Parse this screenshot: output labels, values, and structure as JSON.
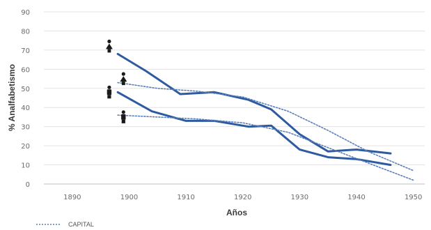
{
  "chart_data": {
    "type": "line",
    "xlabel": "Años",
    "ylabel": "% Analfabetismo",
    "xlim": [
      1885,
      1952
    ],
    "ylim": [
      0,
      90
    ],
    "x_ticks": [
      1890,
      1900,
      1910,
      1920,
      1930,
      1940,
      1950
    ],
    "y_ticks": [
      0,
      10,
      20,
      30,
      40,
      50,
      60,
      70,
      80,
      90
    ],
    "grid": "horizontal",
    "legend_position": "bottom-left",
    "legend": [
      {
        "label": "CAPITAL",
        "style": "dotted"
      }
    ],
    "series": [
      {
        "color": "#2e5aa0",
        "style": "solid",
        "x": [
          1898,
          1903,
          1909,
          1915,
          1921,
          1925,
          1930,
          1935,
          1940,
          1946
        ],
        "y": [
          68,
          59,
          47,
          48,
          44,
          39,
          26,
          17,
          18,
          16
        ]
      },
      {
        "color": "#2e5aa0",
        "style": "solid",
        "x": [
          1898,
          1904,
          1910,
          1915,
          1921,
          1925,
          1930,
          1935,
          1940,
          1946
        ],
        "y": [
          48,
          38,
          33,
          33,
          30,
          30.5,
          18,
          14,
          13,
          10
        ]
      },
      {
        "name": "CAPITAL",
        "color": "#5b7fb8",
        "style": "dotted",
        "x": [
          1898,
          1905,
          1912,
          1920,
          1928,
          1935,
          1942,
          1950
        ],
        "y": [
          53,
          50,
          48.5,
          45.5,
          38,
          28,
          17,
          7
        ]
      },
      {
        "color": "#5b7fb8",
        "style": "dotted",
        "x": [
          1898,
          1905,
          1912,
          1920,
          1928,
          1935,
          1942,
          1950
        ],
        "y": [
          36,
          35,
          34,
          32,
          27,
          19,
          11,
          2
        ]
      }
    ],
    "markers": [
      {
        "x": 1896.5,
        "y": 72,
        "figure": "female"
      },
      {
        "x": 1899,
        "y": 55,
        "figure": "female"
      },
      {
        "x": 1896.5,
        "y": 48,
        "figure": "male"
      },
      {
        "x": 1899,
        "y": 35,
        "figure": "male"
      }
    ]
  }
}
